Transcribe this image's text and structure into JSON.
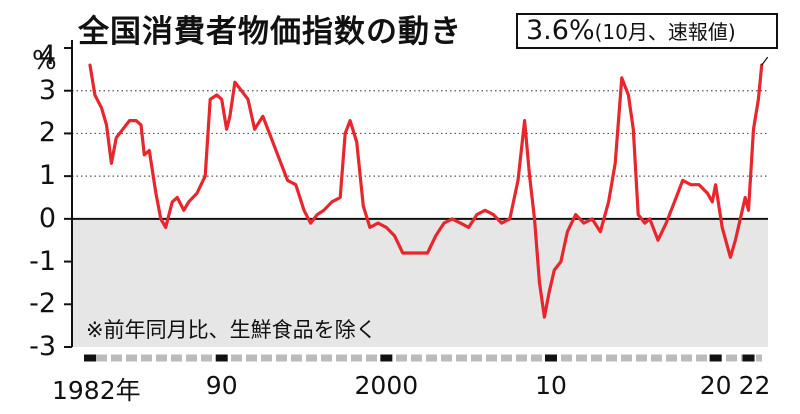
{
  "chart_data": {
    "type": "line",
    "title": "全国消費者物価指数の動き",
    "subtitle": "※前年同月比、生鮮食品を除く",
    "callout": {
      "value": "3.6%",
      "detail": "(10月、速報値)"
    },
    "ylabel": "%",
    "ylim": [
      -3,
      4
    ],
    "y_ticks": [
      "-3",
      "-2",
      "-1",
      "0",
      "1",
      "2",
      "3",
      "4"
    ],
    "xlim": [
      1982,
      2023
    ],
    "x_ticks": [
      {
        "label": "1982年",
        "x": 1982
      },
      {
        "label": "90",
        "x": 1990
      },
      {
        "label": "2000",
        "x": 2000
      },
      {
        "label": "10",
        "x": 2010
      },
      {
        "label": "20",
        "x": 2020
      },
      {
        "label": "22",
        "x": 2022
      }
    ],
    "grid": "dotted horizontal",
    "series": [
      {
        "color": "#e8262d",
        "points": [
          [
            1982.0,
            3.6
          ],
          [
            1982.3,
            2.9
          ],
          [
            1982.7,
            2.6
          ],
          [
            1983.0,
            2.2
          ],
          [
            1983.3,
            1.3
          ],
          [
            1983.6,
            1.9
          ],
          [
            1984.0,
            2.1
          ],
          [
            1984.4,
            2.3
          ],
          [
            1984.8,
            2.3
          ],
          [
            1985.1,
            2.2
          ],
          [
            1985.3,
            1.5
          ],
          [
            1985.6,
            1.6
          ],
          [
            1986.0,
            0.6
          ],
          [
            1986.3,
            0.0
          ],
          [
            1986.6,
            -0.2
          ],
          [
            1987.0,
            0.4
          ],
          [
            1987.3,
            0.5
          ],
          [
            1987.7,
            0.2
          ],
          [
            1988.0,
            0.4
          ],
          [
            1988.5,
            0.6
          ],
          [
            1989.0,
            1.0
          ],
          [
            1989.3,
            2.8
          ],
          [
            1989.7,
            2.9
          ],
          [
            1990.0,
            2.8
          ],
          [
            1990.3,
            2.1
          ],
          [
            1990.5,
            2.4
          ],
          [
            1990.8,
            3.2
          ],
          [
            1991.2,
            3.0
          ],
          [
            1991.6,
            2.8
          ],
          [
            1992.0,
            2.1
          ],
          [
            1992.5,
            2.4
          ],
          [
            1993.0,
            1.9
          ],
          [
            1993.5,
            1.4
          ],
          [
            1994.0,
            0.9
          ],
          [
            1994.5,
            0.8
          ],
          [
            1995.0,
            0.2
          ],
          [
            1995.4,
            -0.1
          ],
          [
            1995.8,
            0.1
          ],
          [
            1996.2,
            0.2
          ],
          [
            1996.7,
            0.4
          ],
          [
            1997.2,
            0.5
          ],
          [
            1997.5,
            2.0
          ],
          [
            1997.8,
            2.3
          ],
          [
            1998.2,
            1.8
          ],
          [
            1998.6,
            0.3
          ],
          [
            1999.0,
            -0.2
          ],
          [
            1999.5,
            -0.1
          ],
          [
            2000.0,
            -0.2
          ],
          [
            2000.5,
            -0.4
          ],
          [
            2001.0,
            -0.8
          ],
          [
            2001.5,
            -0.8
          ],
          [
            2002.0,
            -0.8
          ],
          [
            2002.5,
            -0.8
          ],
          [
            2003.0,
            -0.4
          ],
          [
            2003.5,
            -0.1
          ],
          [
            2004.0,
            0.0
          ],
          [
            2004.5,
            -0.1
          ],
          [
            2005.0,
            -0.2
          ],
          [
            2005.5,
            0.1
          ],
          [
            2006.0,
            0.2
          ],
          [
            2006.5,
            0.1
          ],
          [
            2007.0,
            -0.1
          ],
          [
            2007.5,
            0.0
          ],
          [
            2008.0,
            0.9
          ],
          [
            2008.4,
            2.3
          ],
          [
            2008.7,
            1.0
          ],
          [
            2009.0,
            0.0
          ],
          [
            2009.3,
            -1.5
          ],
          [
            2009.6,
            -2.3
          ],
          [
            2009.9,
            -1.7
          ],
          [
            2010.2,
            -1.2
          ],
          [
            2010.6,
            -1.0
          ],
          [
            2011.0,
            -0.3
          ],
          [
            2011.5,
            0.1
          ],
          [
            2012.0,
            -0.1
          ],
          [
            2012.5,
            0.0
          ],
          [
            2013.0,
            -0.3
          ],
          [
            2013.5,
            0.4
          ],
          [
            2013.9,
            1.3
          ],
          [
            2014.3,
            3.3
          ],
          [
            2014.7,
            2.9
          ],
          [
            2015.0,
            2.1
          ],
          [
            2015.3,
            0.1
          ],
          [
            2015.7,
            -0.1
          ],
          [
            2016.0,
            0.0
          ],
          [
            2016.5,
            -0.5
          ],
          [
            2017.0,
            -0.1
          ],
          [
            2017.5,
            0.4
          ],
          [
            2018.0,
            0.9
          ],
          [
            2018.5,
            0.8
          ],
          [
            2019.0,
            0.8
          ],
          [
            2019.5,
            0.6
          ],
          [
            2019.8,
            0.4
          ],
          [
            2020.0,
            0.8
          ],
          [
            2020.4,
            -0.2
          ],
          [
            2020.9,
            -0.9
          ],
          [
            2021.2,
            -0.5
          ],
          [
            2021.5,
            0.0
          ],
          [
            2021.8,
            0.5
          ],
          [
            2022.0,
            0.2
          ],
          [
            2022.3,
            2.1
          ],
          [
            2022.6,
            2.8
          ],
          [
            2022.8,
            3.6
          ]
        ]
      }
    ]
  }
}
